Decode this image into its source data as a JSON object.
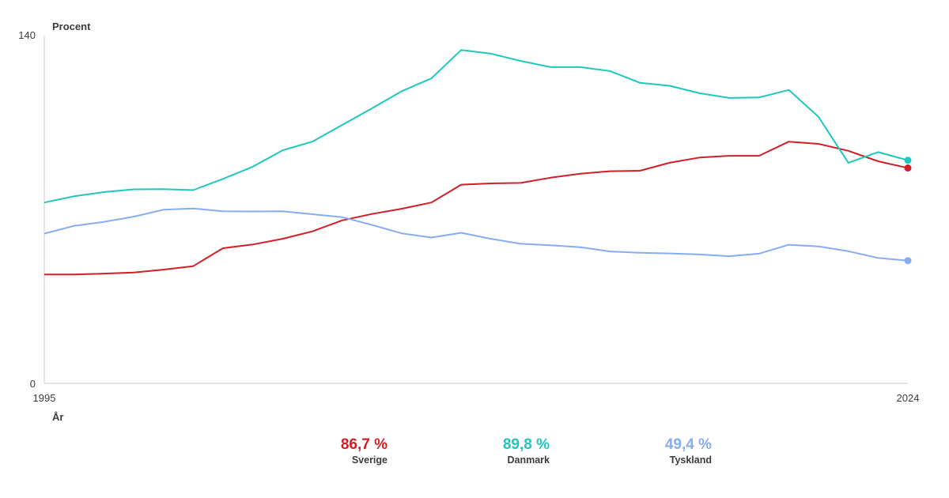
{
  "chart_data": {
    "type": "line",
    "ylabel": "Procent",
    "xlabel": "År",
    "ylim": [
      0,
      140
    ],
    "xlim": [
      1995,
      2024
    ],
    "x": [
      1995,
      1996,
      1997,
      1998,
      1999,
      2000,
      2001,
      2002,
      2003,
      2004,
      2005,
      2006,
      2007,
      2008,
      2009,
      2010,
      2011,
      2012,
      2013,
      2014,
      2015,
      2016,
      2017,
      2018,
      2019,
      2020,
      2021,
      2022,
      2023,
      2024
    ],
    "x_tick_labels": [
      "1995",
      "2024"
    ],
    "y_tick_labels": [
      "0",
      "140"
    ],
    "series": [
      {
        "name": "Sverige",
        "color": "#d01f26",
        "final_label": "86,7 %",
        "values": [
          43.8,
          43.8,
          44.2,
          44.6,
          45.8,
          47.2,
          54.4,
          55.9,
          58.2,
          61.2,
          65.6,
          68.2,
          70.3,
          72.8,
          80.0,
          80.5,
          80.7,
          82.8,
          84.4,
          85.4,
          85.6,
          88.8,
          90.9,
          91.6,
          91.6,
          97.3,
          96.4,
          93.6,
          89.4,
          86.7
        ]
      },
      {
        "name": "Danmark",
        "color": "#1fc7bd",
        "final_label": "89,8 %",
        "values": [
          72.8,
          75.3,
          77.0,
          78.1,
          78.2,
          77.8,
          82.3,
          87.2,
          93.8,
          97.3,
          104.0,
          110.7,
          117.6,
          122.8,
          134.2,
          132.7,
          129.8,
          127.3,
          127.3,
          125.7,
          121.0,
          119.8,
          116.8,
          114.9,
          115.1,
          118.1,
          107.3,
          88.8,
          93.1,
          89.8
        ]
      },
      {
        "name": "Tyskland",
        "color": "#86adf2",
        "final_label": "49,4 %",
        "values": [
          60.3,
          63.4,
          65.0,
          67.1,
          69.9,
          70.4,
          69.3,
          69.2,
          69.3,
          68.1,
          66.9,
          63.8,
          60.4,
          58.7,
          60.6,
          58.2,
          56.2,
          55.6,
          54.8,
          53.1,
          52.6,
          52.3,
          51.9,
          51.2,
          52.2,
          55.8,
          55.1,
          53.2,
          50.5,
          49.4
        ]
      }
    ]
  }
}
